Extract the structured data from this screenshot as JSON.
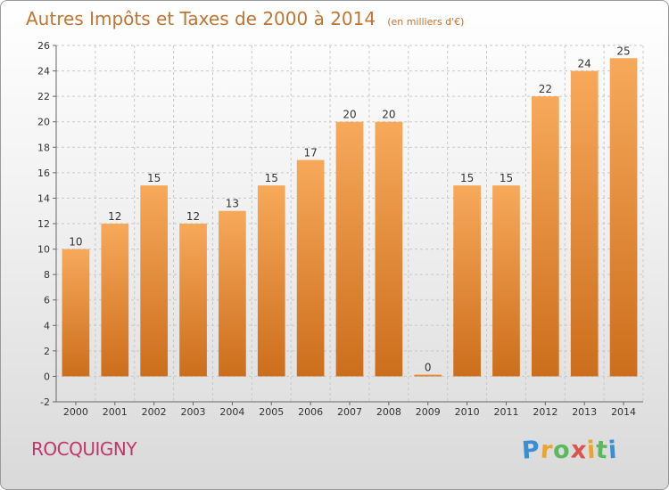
{
  "header": {
    "title": "Autres Impôts et Taxes de 2000 à 2014",
    "unit": "(en milliers d'€)"
  },
  "footer": {
    "commune": "ROCQUIGNY",
    "logo_letters": [
      "P",
      "r",
      "o",
      "x",
      "i",
      "t",
      "i"
    ],
    "logo_colors": [
      "#3a8fd4",
      "#e8a534",
      "#5cb85c",
      "#d9534f",
      "#e8a534",
      "#5cb85c",
      "#3a8fd4"
    ]
  },
  "colors": {
    "bar_top": "#f7a95a",
    "bar_bottom": "#cc6e1c",
    "grid": "#c8c8c8",
    "axis": "#666666",
    "title": "#c07533",
    "commune": "#c0366b"
  },
  "chart_data": {
    "type": "bar",
    "title": "Autres Impôts et Taxes de 2000 à 2014",
    "subtitle": "(en milliers d'€)",
    "categories": [
      "2000",
      "2001",
      "2002",
      "2003",
      "2004",
      "2005",
      "2006",
      "2007",
      "2008",
      "2009",
      "2010",
      "2011",
      "2012",
      "2013",
      "2014"
    ],
    "values": [
      10,
      12,
      15,
      12,
      13,
      15,
      17,
      20,
      20,
      0,
      15,
      15,
      22,
      24,
      25
    ],
    "ylim": [
      -2,
      26
    ],
    "yticks": [
      -2,
      0,
      2,
      4,
      6,
      8,
      10,
      12,
      14,
      16,
      18,
      20,
      22,
      24,
      26
    ],
    "grid": true,
    "xlabel": "",
    "ylabel": ""
  }
}
